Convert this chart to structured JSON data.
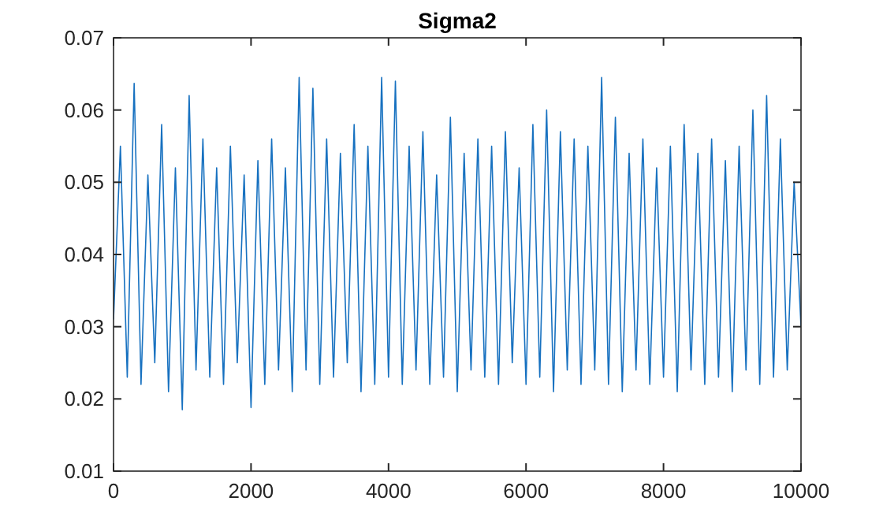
{
  "chart_data": {
    "type": "line",
    "title": "Sigma2",
    "x": [
      0,
      100,
      200,
      300,
      400,
      500,
      600,
      700,
      800,
      900,
      1000,
      1100,
      1200,
      1300,
      1400,
      1500,
      1600,
      1700,
      1800,
      1900,
      2000,
      2100,
      2200,
      2300,
      2400,
      2500,
      2600,
      2700,
      2800,
      2900,
      3000,
      3100,
      3200,
      3300,
      3400,
      3500,
      3600,
      3700,
      3800,
      3900,
      4000,
      4100,
      4200,
      4300,
      4400,
      4500,
      4600,
      4700,
      4800,
      4900,
      5000,
      5100,
      5200,
      5300,
      5400,
      5500,
      5600,
      5700,
      5800,
      5900,
      6000,
      6100,
      6200,
      6300,
      6400,
      6500,
      6600,
      6700,
      6800,
      6900,
      7000,
      7100,
      7200,
      7300,
      7400,
      7500,
      7600,
      7700,
      7800,
      7900,
      8000,
      8100,
      8200,
      8300,
      8400,
      8500,
      8600,
      8700,
      8800,
      8900,
      9000,
      9100,
      9200,
      9300,
      9400,
      9500,
      9600,
      9700,
      9800,
      9900,
      10000
    ],
    "series": [
      {
        "color": "#1771c0",
        "values": [
          0.031,
          0.055,
          0.023,
          0.0637,
          0.022,
          0.051,
          0.025,
          0.058,
          0.021,
          0.052,
          0.0185,
          0.062,
          0.024,
          0.056,
          0.023,
          0.052,
          0.022,
          0.055,
          0.025,
          0.051,
          0.0188,
          0.053,
          0.022,
          0.056,
          0.024,
          0.052,
          0.021,
          0.0645,
          0.024,
          0.063,
          0.022,
          0.056,
          0.023,
          0.054,
          0.025,
          0.058,
          0.021,
          0.055,
          0.022,
          0.0645,
          0.023,
          0.064,
          0.022,
          0.055,
          0.024,
          0.057,
          0.022,
          0.051,
          0.023,
          0.059,
          0.021,
          0.054,
          0.024,
          0.056,
          0.023,
          0.055,
          0.022,
          0.057,
          0.025,
          0.052,
          0.022,
          0.058,
          0.023,
          0.06,
          0.021,
          0.057,
          0.024,
          0.056,
          0.022,
          0.055,
          0.024,
          0.0645,
          0.022,
          0.059,
          0.021,
          0.054,
          0.024,
          0.056,
          0.022,
          0.052,
          0.023,
          0.055,
          0.021,
          0.058,
          0.024,
          0.054,
          0.022,
          0.056,
          0.023,
          0.053,
          0.021,
          0.055,
          0.024,
          0.06,
          0.022,
          0.062,
          0.023,
          0.056,
          0.024,
          0.05,
          0.03
        ]
      }
    ],
    "xlim": [
      0,
      10000
    ],
    "xticks": [
      0,
      2000,
      4000,
      6000,
      8000,
      10000
    ],
    "ylim": [
      0.01,
      0.07
    ],
    "yticks": [
      0.01,
      0.02,
      0.03,
      0.04,
      0.05,
      0.06,
      0.07
    ],
    "grid": false,
    "line_style": "solid",
    "marker": "none"
  }
}
